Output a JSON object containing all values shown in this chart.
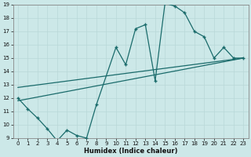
{
  "xlabel": "Humidex (Indice chaleur)",
  "xlim": [
    -0.5,
    23.5
  ],
  "ylim": [
    9,
    19
  ],
  "xticks": [
    0,
    1,
    2,
    3,
    4,
    5,
    6,
    7,
    8,
    9,
    10,
    11,
    12,
    13,
    14,
    15,
    16,
    17,
    18,
    19,
    20,
    21,
    22,
    23
  ],
  "yticks": [
    9,
    10,
    11,
    12,
    13,
    14,
    15,
    16,
    17,
    18,
    19
  ],
  "bg_color": "#cce8e8",
  "line_color": "#1a6b6b",
  "line1_x": [
    0,
    1,
    2,
    3,
    4,
    5,
    6,
    7,
    8,
    10,
    11,
    12,
    13,
    14,
    15,
    16,
    17,
    18,
    19,
    20,
    21,
    22,
    23
  ],
  "line1_y": [
    12.0,
    11.2,
    10.5,
    9.7,
    8.8,
    9.6,
    9.2,
    9.0,
    11.5,
    15.8,
    14.5,
    17.2,
    17.5,
    13.3,
    19.1,
    18.9,
    18.4,
    17.0,
    16.6,
    15.0,
    15.8,
    15.0,
    15.0
  ],
  "line2_x": [
    0,
    23
  ],
  "line2_y": [
    11.8,
    15.0
  ],
  "line3_x": [
    0,
    23
  ],
  "line3_y": [
    12.8,
    15.0
  ],
  "xlabel_fontsize": 6,
  "tick_fontsize": 5
}
